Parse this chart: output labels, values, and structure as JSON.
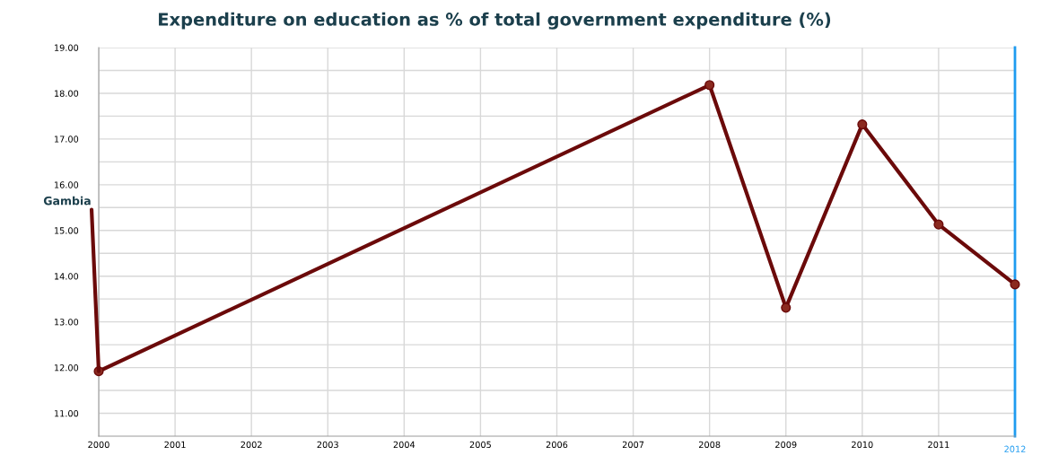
{
  "chart_data": {
    "type": "line",
    "title": "Expenditure on education as % of total government expenditure (%)",
    "x": [
      2000,
      2008,
      2009,
      2010,
      2011,
      2012
    ],
    "series": [
      {
        "name": "Gambia",
        "color": "#6b0a0a",
        "values": [
          11.92,
          18.18,
          13.31,
          17.32,
          15.13,
          13.82
        ]
      }
    ],
    "xlim": [
      2000,
      2012
    ],
    "xticks": [
      2000,
      2001,
      2002,
      2003,
      2004,
      2005,
      2006,
      2007,
      2008,
      2009,
      2010,
      2011
    ],
    "ylim": [
      10.5,
      19
    ],
    "yticks": [
      {
        "value": 11,
        "label": "11.00"
      },
      {
        "value": 11.5,
        "label": null
      },
      {
        "value": 12,
        "label": "12.00"
      },
      {
        "value": 12.5,
        "label": null
      },
      {
        "value": 13,
        "label": "13.00"
      },
      {
        "value": 13.5,
        "label": null
      },
      {
        "value": 14,
        "label": "14.00"
      },
      {
        "value": 14.5,
        "label": null
      },
      {
        "value": 15,
        "label": "15.00"
      },
      {
        "value": 15.5,
        "label": null
      },
      {
        "value": 16,
        "label": "16.00"
      },
      {
        "value": 16.5,
        "label": null
      },
      {
        "value": 17,
        "label": "17.00"
      },
      {
        "value": 17.5,
        "label": null
      },
      {
        "value": 18,
        "label": "18.00"
      },
      {
        "value": 18.5,
        "label": null
      },
      {
        "value": 19,
        "label": "19.00"
      }
    ],
    "ref_lines": [
      {
        "axis": "x",
        "value": 2012,
        "label": "2012",
        "color": "#1e9bf0"
      }
    ],
    "grid": true,
    "marker": "circle",
    "line_style": "solid",
    "legend": false
  }
}
